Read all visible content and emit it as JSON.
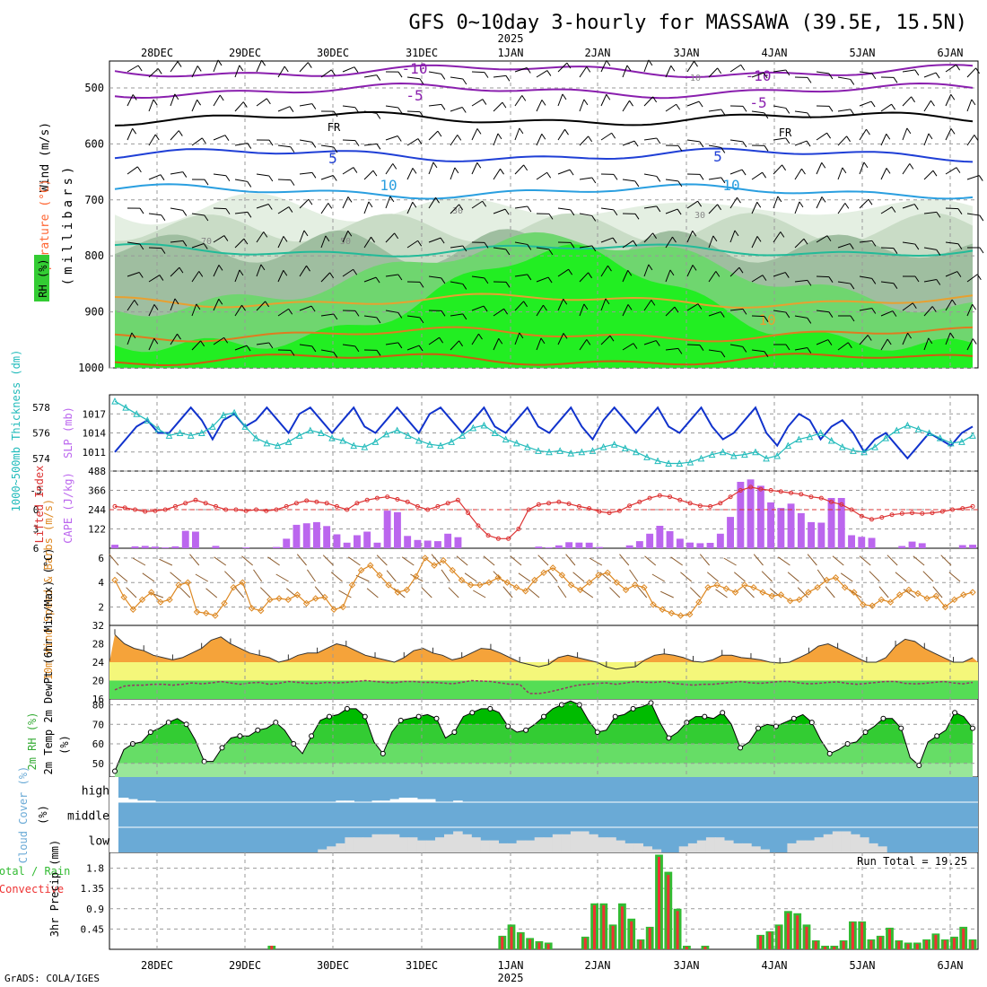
{
  "chart_data": {
    "type": "meteogram",
    "title": "GFS 0~10day 3-hourly for MASSAWA (39.5E, 15.5N)",
    "year_label": "2025",
    "credit": "GrADS: COLA/IGES",
    "date_labels": [
      "28DEC",
      "29DEC",
      "30DEC",
      "31DEC",
      "1JAN",
      "2JAN",
      "3JAN",
      "4JAN",
      "5JAN",
      "6JAN"
    ],
    "colors": {
      "wind": "#000000",
      "temperature": "#ff6633",
      "rh": "#33cc33",
      "slp": "#1133cc",
      "thickness": "#22bbbb",
      "lifted_index": "#dd3333",
      "cape": "#bb66ee",
      "wind10m": "#dd8822",
      "cloud": "#6aaad6",
      "precip_total": "#33bb33",
      "precip_conv": "#ee3333"
    },
    "upper_air": {
      "ylabel_wind": "Wind (m/s)",
      "ylabel_temp": "Temperature (°C)",
      "ylabel_rh": "RH (%)",
      "ylabel_units": "(millibars)",
      "pressure_ticks": [
        {
          "label": "500",
          "value": 500
        },
        {
          "label": "600",
          "value": 600
        },
        {
          "label": "700",
          "value": 700
        },
        {
          "label": "800",
          "value": 800
        },
        {
          "label": "900",
          "value": 900
        },
        {
          "label": "1000",
          "value": 1000
        }
      ],
      "pressure_range": [
        452,
        1000
      ],
      "isotherm_labels": [
        "-10",
        "-5",
        "FR",
        "5",
        "10",
        "10",
        "-10",
        "-5",
        "FR",
        "5",
        "10"
      ],
      "rh_labels": [
        "30",
        "70",
        "50",
        "30",
        "10"
      ],
      "isotherms": [
        {
          "label": "-10",
          "level": 470,
          "color": "#8a1fae"
        },
        {
          "label": "-5",
          "level": 505,
          "color": "#8a1fae"
        },
        {
          "label": "FR",
          "level": 555,
          "color": "#000000"
        },
        {
          "label": "5",
          "level": 620,
          "color": "#1f3fd6"
        },
        {
          "label": "10",
          "level": 685,
          "color": "#2a9fe0"
        },
        {
          "label": "15",
          "level": 790,
          "color": "#22bb99"
        },
        {
          "label": "20",
          "level": 880,
          "color": "#e8a030"
        },
        {
          "label": "25",
          "level": 940,
          "color": "#e07b20"
        },
        {
          "label": "30",
          "level": 985,
          "color": "#d05a10"
        }
      ]
    },
    "slp_thickness": {
      "ylabel_left": "1000~500mb Thickness (dm)",
      "ylabel_right": "SLP (mb)",
      "left_ticks": [
        "578",
        "576",
        "574"
      ],
      "right_ticks": [
        "1017",
        "1014",
        "1011"
      ],
      "slp_range": [
        1008,
        1020
      ],
      "thickness_range": [
        573,
        579
      ],
      "slp": [
        1011,
        1013,
        1015,
        1016,
        1014,
        1014,
        1016,
        1018,
        1016,
        1013,
        1016,
        1017,
        1015,
        1016,
        1018,
        1016,
        1014,
        1017,
        1018,
        1016,
        1014,
        1016,
        1018,
        1015,
        1014,
        1016,
        1018,
        1016,
        1014,
        1017,
        1018,
        1016,
        1014,
        1016,
        1018,
        1015,
        1014,
        1016,
        1018,
        1015,
        1014,
        1016,
        1018,
        1015,
        1013,
        1016,
        1018,
        1016,
        1014,
        1016,
        1018,
        1015,
        1014,
        1016,
        1018,
        1015,
        1013,
        1014,
        1016,
        1018,
        1014,
        1012,
        1015,
        1017,
        1016,
        1013,
        1015,
        1016,
        1014,
        1011,
        1013,
        1014,
        1012,
        1010,
        1012,
        1014,
        1013,
        1012,
        1014,
        1015
      ],
      "thickness": [
        578.5,
        578.0,
        577.5,
        577.0,
        576.3,
        575.8,
        576.0,
        575.8,
        576.0,
        576.5,
        577.4,
        577.6,
        576.5,
        575.6,
        575.2,
        575.0,
        575.3,
        575.8,
        576.2,
        576.0,
        575.6,
        575.4,
        575.0,
        574.9,
        575.3,
        575.9,
        576.2,
        575.8,
        575.4,
        575.1,
        575.0,
        575.3,
        575.8,
        576.4,
        576.6,
        576.0,
        575.5,
        575.2,
        574.9,
        574.6,
        574.5,
        574.6,
        574.4,
        574.5,
        574.6,
        574.9,
        575.1,
        574.8,
        574.5,
        574.1,
        573.8,
        573.6,
        573.6,
        573.7,
        574.0,
        574.3,
        574.5,
        574.2,
        574.3,
        574.5,
        574.0,
        574.2,
        575.0,
        575.5,
        575.7,
        576.0,
        575.4,
        574.9,
        574.6,
        574.5,
        574.9,
        575.6,
        576.2,
        576.6,
        576.3,
        576.0,
        575.6,
        575.2,
        575.3,
        575.8
      ]
    },
    "cape_li": {
      "ylabel_left": "Lifted Index",
      "ylabel_right": "CAPE (J/kg)",
      "left_ticks": [
        "-3",
        "0",
        "3",
        "6"
      ],
      "right_ticks": [
        "488",
        "366",
        "244",
        "122"
      ],
      "li_range": [
        -6,
        6
      ],
      "cape_range": [
        0,
        488
      ],
      "cape": [
        22,
        0,
        12,
        15,
        10,
        5,
        12,
        110,
        105,
        0,
        15,
        0,
        0,
        5,
        0,
        0,
        8,
        60,
        148,
        158,
        165,
        140,
        88,
        35,
        82,
        105,
        35,
        238,
        228,
        78,
        52,
        48,
        45,
        92,
        70,
        0,
        0,
        0,
        0,
        0,
        0,
        0,
        10,
        5,
        18,
        38,
        36,
        35,
        8,
        0,
        0,
        18,
        45,
        92,
        142,
        108,
        60,
        36,
        32,
        34,
        92,
        198,
        420,
        435,
        395,
        290,
        255,
        282,
        222,
        165,
        162,
        318,
        318,
        82,
        72,
        65,
        0,
        0,
        14,
        42,
        32,
        0,
        0,
        0,
        20,
        22
      ],
      "lifted_index": [
        -0.5,
        -0.3,
        0.0,
        0.3,
        0.2,
        0.0,
        -0.5,
        -1.0,
        -1.5,
        -1.0,
        -0.5,
        0.0,
        0.0,
        0.2,
        0.0,
        0.2,
        0.0,
        -0.5,
        -1.0,
        -1.4,
        -1.2,
        -1.0,
        -0.5,
        0.0,
        -1.0,
        -1.5,
        -1.8,
        -2.0,
        -1.6,
        -1.2,
        -0.5,
        0.0,
        -0.5,
        -1.0,
        -1.5,
        0.5,
        2.5,
        4.0,
        4.5,
        4.5,
        3.0,
        0.0,
        -0.8,
        -1.0,
        -1.2,
        -0.9,
        -0.5,
        -0.2,
        0.3,
        0.5,
        0.2,
        -0.6,
        -1.2,
        -1.8,
        -2.2,
        -2.0,
        -1.5,
        -1.0,
        -0.6,
        -0.5,
        -1.0,
        -2.0,
        -3.0,
        -3.5,
        -3.2,
        -3.0,
        -2.8,
        -2.6,
        -2.4,
        -2.0,
        -1.8,
        -1.2,
        -0.8,
        0.0,
        1.0,
        1.5,
        1.2,
        0.8,
        0.6,
        0.5,
        0.6,
        0.5,
        0.3,
        0.0,
        -0.2,
        -0.5
      ],
      "reference_line": 0
    },
    "wind10m": {
      "ylabel": "10m Wind Speed & Barbs (m/s)",
      "ticks": [
        "2",
        "4",
        "6"
      ],
      "range": [
        0.5,
        6.8
      ],
      "speed": [
        4.2,
        2.8,
        1.8,
        2.6,
        3.2,
        2.4,
        2.6,
        3.8,
        4.0,
        1.6,
        1.5,
        1.3,
        2.3,
        3.6,
        4.0,
        1.9,
        1.7,
        2.6,
        2.7,
        2.6,
        3.0,
        2.3,
        2.7,
        2.8,
        1.8,
        2.0,
        3.8,
        5.0,
        5.4,
        4.6,
        3.8,
        3.2,
        3.4,
        4.5,
        6.0,
        5.4,
        5.8,
        5.0,
        4.2,
        3.8,
        3.8,
        4.0,
        4.4,
        4.0,
        3.6,
        3.3,
        4.2,
        4.8,
        5.2,
        4.6,
        3.8,
        3.4,
        4.0,
        4.6,
        4.8,
        4.0,
        3.4,
        3.8,
        3.6,
        2.2,
        1.8,
        1.5,
        1.3,
        1.4,
        2.4,
        3.6,
        3.8,
        3.5,
        3.2,
        3.8,
        3.6,
        3.2,
        2.9,
        3.0,
        2.5,
        2.6,
        3.2,
        3.6,
        4.2,
        4.4,
        3.6,
        3.2,
        2.2,
        2.1,
        2.6,
        2.4,
        3.0,
        3.4,
        3.1,
        2.7,
        2.9,
        2.0,
        2.6,
        3.0,
        3.2
      ],
      "wind_dir_deg": [
        10,
        20,
        15,
        30,
        25,
        40,
        35,
        20,
        15,
        10,
        30,
        20,
        25,
        15,
        10,
        20,
        5,
        15,
        25,
        30,
        20,
        10,
        5,
        10,
        15,
        20,
        30,
        25,
        35,
        20,
        15,
        10,
        20,
        25,
        30,
        15,
        10,
        5,
        15,
        20,
        25,
        30,
        20,
        15,
        10,
        20,
        25,
        20,
        15,
        10,
        5,
        10,
        20,
        25,
        30,
        20,
        15,
        10,
        5,
        10,
        20,
        30,
        35,
        25,
        20,
        15,
        10,
        20,
        25,
        30,
        20,
        15,
        10,
        15,
        20,
        25,
        20,
        15,
        10,
        5,
        10,
        20,
        25,
        30,
        20,
        15,
        10,
        15,
        20,
        25,
        20,
        15,
        10,
        15,
        20
      ]
    },
    "temp2m": {
      "ylabel": "2m Temp 2m DewPt (6hr Min/Max) (°C)",
      "ticks": [
        "32",
        "28",
        "24",
        "20",
        "16"
      ],
      "range": [
        16,
        32
      ],
      "temp": [
        30.0,
        28.0,
        27.0,
        26.5,
        25.5,
        25.0,
        24.5,
        25.0,
        26.0,
        27.0,
        28.8,
        29.5,
        28.0,
        27.0,
        26.0,
        25.5,
        25.0,
        24.0,
        24.5,
        25.5,
        26.0,
        26.0,
        27.0,
        28.0,
        27.5,
        26.5,
        25.5,
        25.0,
        24.5,
        24.0,
        25.0,
        26.5,
        27.0,
        26.0,
        25.5,
        24.5,
        25.0,
        26.0,
        27.0,
        26.8,
        26.0,
        25.0,
        24.0,
        23.5,
        23.0,
        23.5,
        25.0,
        25.5,
        25.0,
        24.5,
        24.0,
        23.0,
        22.5,
        22.8,
        23.0,
        24.5,
        25.5,
        25.8,
        25.5,
        25.0,
        24.2,
        24.0,
        24.5,
        25.5,
        25.5,
        25.0,
        24.8,
        24.5,
        24.0,
        23.8,
        24.0,
        25.0,
        26.0,
        27.5,
        28.0,
        27.0,
        26.0,
        25.0,
        24.0,
        24.0,
        25.0,
        27.5,
        29.0,
        28.5,
        27.0,
        26.0,
        25.0,
        24.0,
        24.0,
        25.0
      ],
      "dewpoint": [
        18.0,
        18.8,
        19.0,
        19.0,
        19.2,
        19.2,
        19.0,
        19.2,
        19.5,
        19.3,
        19.5,
        19.8,
        19.5,
        19.2,
        19.5,
        19.6,
        19.2,
        19.4,
        19.8,
        19.6,
        19.4,
        19.4,
        19.6,
        19.5,
        19.6,
        19.8,
        20.0,
        19.8,
        19.6,
        19.5,
        19.8,
        19.8,
        19.6,
        19.6,
        19.5,
        19.3,
        19.6,
        20.0,
        19.9,
        19.8,
        19.5,
        19.2,
        19.2,
        17.2,
        17.2,
        17.5,
        18.0,
        18.5,
        19.0,
        19.2,
        19.4,
        19.5,
        19.2,
        19.5,
        19.8,
        19.6,
        19.6,
        19.8,
        19.4,
        19.2,
        19.0,
        19.2,
        19.2,
        19.4,
        19.6,
        19.8,
        19.5,
        19.4,
        19.6,
        19.8,
        19.8,
        19.5,
        19.3,
        19.4,
        19.6,
        19.7,
        19.4,
        19.2,
        19.4,
        19.6,
        19.8,
        19.8,
        19.4,
        19.3,
        19.4,
        19.6,
        19.8,
        19.5,
        19.3,
        19.6
      ]
    },
    "rh2m": {
      "ylabel": "2m RH (%)",
      "ticks": [
        "80",
        "70",
        "60",
        "50"
      ],
      "range": [
        43,
        83
      ],
      "rh": [
        46,
        57,
        60,
        61,
        66,
        68,
        71,
        73,
        70,
        62,
        51,
        51,
        58,
        63,
        64,
        64,
        67,
        68,
        71,
        67,
        60,
        55,
        64,
        72,
        74,
        75,
        78,
        78,
        74,
        61,
        55,
        66,
        72,
        73,
        74,
        75,
        73,
        63,
        66,
        74,
        76,
        78,
        78,
        76,
        69,
        66,
        67,
        70,
        74,
        78,
        80,
        82,
        80,
        72,
        66,
        67,
        74,
        75,
        78,
        79,
        81,
        71,
        63,
        66,
        71,
        74,
        74,
        73,
        76,
        70,
        58,
        61,
        68,
        70,
        69,
        71,
        73,
        75,
        71,
        62,
        55,
        57,
        60,
        61,
        66,
        69,
        73,
        73,
        68,
        53,
        49,
        61,
        64,
        67,
        76,
        74,
        68
      ]
    },
    "cloud": {
      "ylabel": "Cloud Cover (%)",
      "level_labels": [
        "high",
        "middle",
        "low"
      ],
      "low_pct": [
        0,
        0,
        0,
        0,
        0,
        0,
        0,
        0,
        0,
        0,
        0,
        0,
        0,
        0,
        0,
        0,
        0,
        0,
        0,
        0,
        0,
        0,
        0,
        5,
        10,
        15,
        25,
        25,
        25,
        30,
        30,
        30,
        25,
        25,
        20,
        20,
        25,
        30,
        35,
        30,
        25,
        20,
        20,
        15,
        15,
        20,
        20,
        25,
        25,
        30,
        30,
        35,
        35,
        30,
        25,
        25,
        20,
        15,
        15,
        10,
        5,
        0,
        0,
        10,
        15,
        20,
        25,
        25,
        20,
        15,
        15,
        10,
        5,
        0,
        0,
        15,
        20,
        20,
        25,
        30,
        35,
        35,
        30,
        25,
        15,
        10,
        0,
        0,
        0,
        0,
        0,
        0,
        0,
        0,
        0,
        0
      ],
      "high_pct": [
        15,
        15,
        10,
        5,
        5,
        0,
        0,
        0,
        0,
        0,
        0,
        0,
        0,
        0,
        0,
        0,
        0,
        0,
        0,
        0,
        0,
        0,
        0,
        0,
        0,
        5,
        5,
        0,
        0,
        5,
        5,
        10,
        15,
        15,
        10,
        10,
        0,
        0,
        5,
        0,
        0,
        0,
        0,
        0,
        0,
        0,
        0,
        0,
        0,
        0,
        0,
        0,
        0,
        0,
        0,
        0,
        0,
        0,
        0,
        0,
        0,
        0,
        0,
        0,
        0,
        0,
        0,
        0,
        0,
        0,
        0,
        0,
        0,
        0,
        0,
        0,
        0,
        0,
        0,
        0,
        0,
        0,
        0,
        0,
        0,
        0,
        0,
        0,
        0,
        0,
        0,
        0,
        0,
        0,
        0,
        0
      ]
    },
    "precip": {
      "ylabel_total": "Total / Rain",
      "ylabel_conv": "Convective",
      "ylabel_amt": "3hr Precip (mm)",
      "ticks": [
        "1.8",
        "1.35",
        "0.9",
        "0.45"
      ],
      "run_total_label": "Run Total = 19.25",
      "range": [
        0,
        2.15
      ],
      "total": [
        0,
        0,
        0,
        0,
        0,
        0,
        0,
        0,
        0,
        0,
        0,
        0,
        0,
        0,
        0,
        0,
        0,
        0.08,
        0,
        0,
        0,
        0,
        0,
        0,
        0,
        0,
        0,
        0,
        0,
        0,
        0,
        0,
        0,
        0,
        0,
        0,
        0,
        0,
        0,
        0,
        0,
        0,
        0.3,
        0.55,
        0.38,
        0.25,
        0.18,
        0.15,
        0,
        0,
        0,
        0.28,
        1.02,
        1.02,
        0.55,
        1.02,
        0.68,
        0.22,
        0.5,
        2.1,
        1.72,
        0.9,
        0.08,
        0,
        0.08,
        0,
        0,
        0,
        0,
        0,
        0.32,
        0.4,
        0.55,
        0.85,
        0.8,
        0.55,
        0.2,
        0.08,
        0.08,
        0.2,
        0.62,
        0.62,
        0.22,
        0.3,
        0.48,
        0.2,
        0.15,
        0.15,
        0.22,
        0.35,
        0.22,
        0.28,
        0.5,
        0.22
      ],
      "convective": [
        0,
        0,
        0,
        0,
        0,
        0,
        0,
        0,
        0,
        0,
        0,
        0,
        0,
        0,
        0,
        0,
        0,
        0.08,
        0,
        0,
        0,
        0,
        0,
        0,
        0,
        0,
        0,
        0,
        0,
        0,
        0,
        0,
        0,
        0,
        0,
        0,
        0,
        0,
        0,
        0,
        0,
        0,
        0.28,
        0.5,
        0.35,
        0.22,
        0.15,
        0.12,
        0,
        0,
        0,
        0.25,
        0.98,
        0.98,
        0.52,
        0.95,
        0.62,
        0.2,
        0.48,
        2.05,
        1.65,
        0.85,
        0.06,
        0.05,
        0.06,
        0,
        0,
        0,
        0,
        0,
        0.3,
        0.38,
        0.52,
        0.8,
        0.75,
        0.5,
        0.18,
        0.06,
        0.06,
        0.18,
        0.6,
        0.6,
        0.2,
        0.28,
        0.45,
        0.18,
        0.12,
        0.12,
        0.2,
        0.32,
        0.2,
        0.25,
        0.46,
        0.2
      ]
    }
  }
}
